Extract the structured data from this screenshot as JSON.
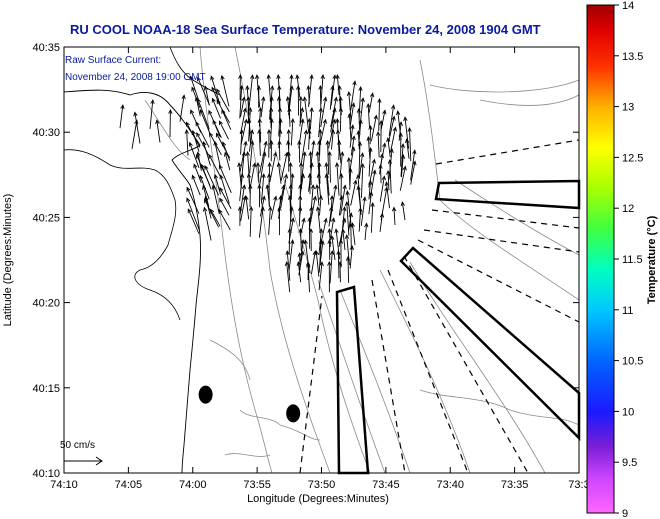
{
  "chart_data": {
    "type": "vector-field-map",
    "title": "RU COOL  NOAA-18  Sea Surface Temperature:  November 24, 2008 1904 GMT",
    "annotation_lines": [
      "Raw Surface Current:",
      "November 24, 2008 19:00 GMT"
    ],
    "xlabel": "Longitude (Degrees:Minutes)",
    "ylabel": "Latitude (Degrees:Minutes)",
    "x_ticks": [
      "74:10",
      "74:05",
      "74:00",
      "73:55",
      "73:50",
      "73:45",
      "73:40",
      "73:35",
      "73:3"
    ],
    "y_ticks": [
      "40:35",
      "40:30",
      "40:25",
      "40:20",
      "40:15",
      "40:10"
    ],
    "xlim_minutes_west": [
      4450,
      4410
    ],
    "ylim_minutes_north": [
      2410,
      2435
    ],
    "scale_vector_label": "50 cm/s",
    "colorbar": {
      "label": "Temperature (°C)",
      "range": [
        9,
        14
      ],
      "ticks": [
        "14",
        "13.5",
        "13",
        "12.5",
        "12",
        "11.5",
        "11",
        "10.5",
        "10",
        "9.5",
        "9"
      ]
    },
    "markers": [
      {
        "name": "buoy-west",
        "lon_min_w": 4439,
        "lat_min_n": 2414.6
      },
      {
        "name": "buoy-east",
        "lon_min_w": 4432.2,
        "lat_min_n": 2413.5
      }
    ]
  }
}
